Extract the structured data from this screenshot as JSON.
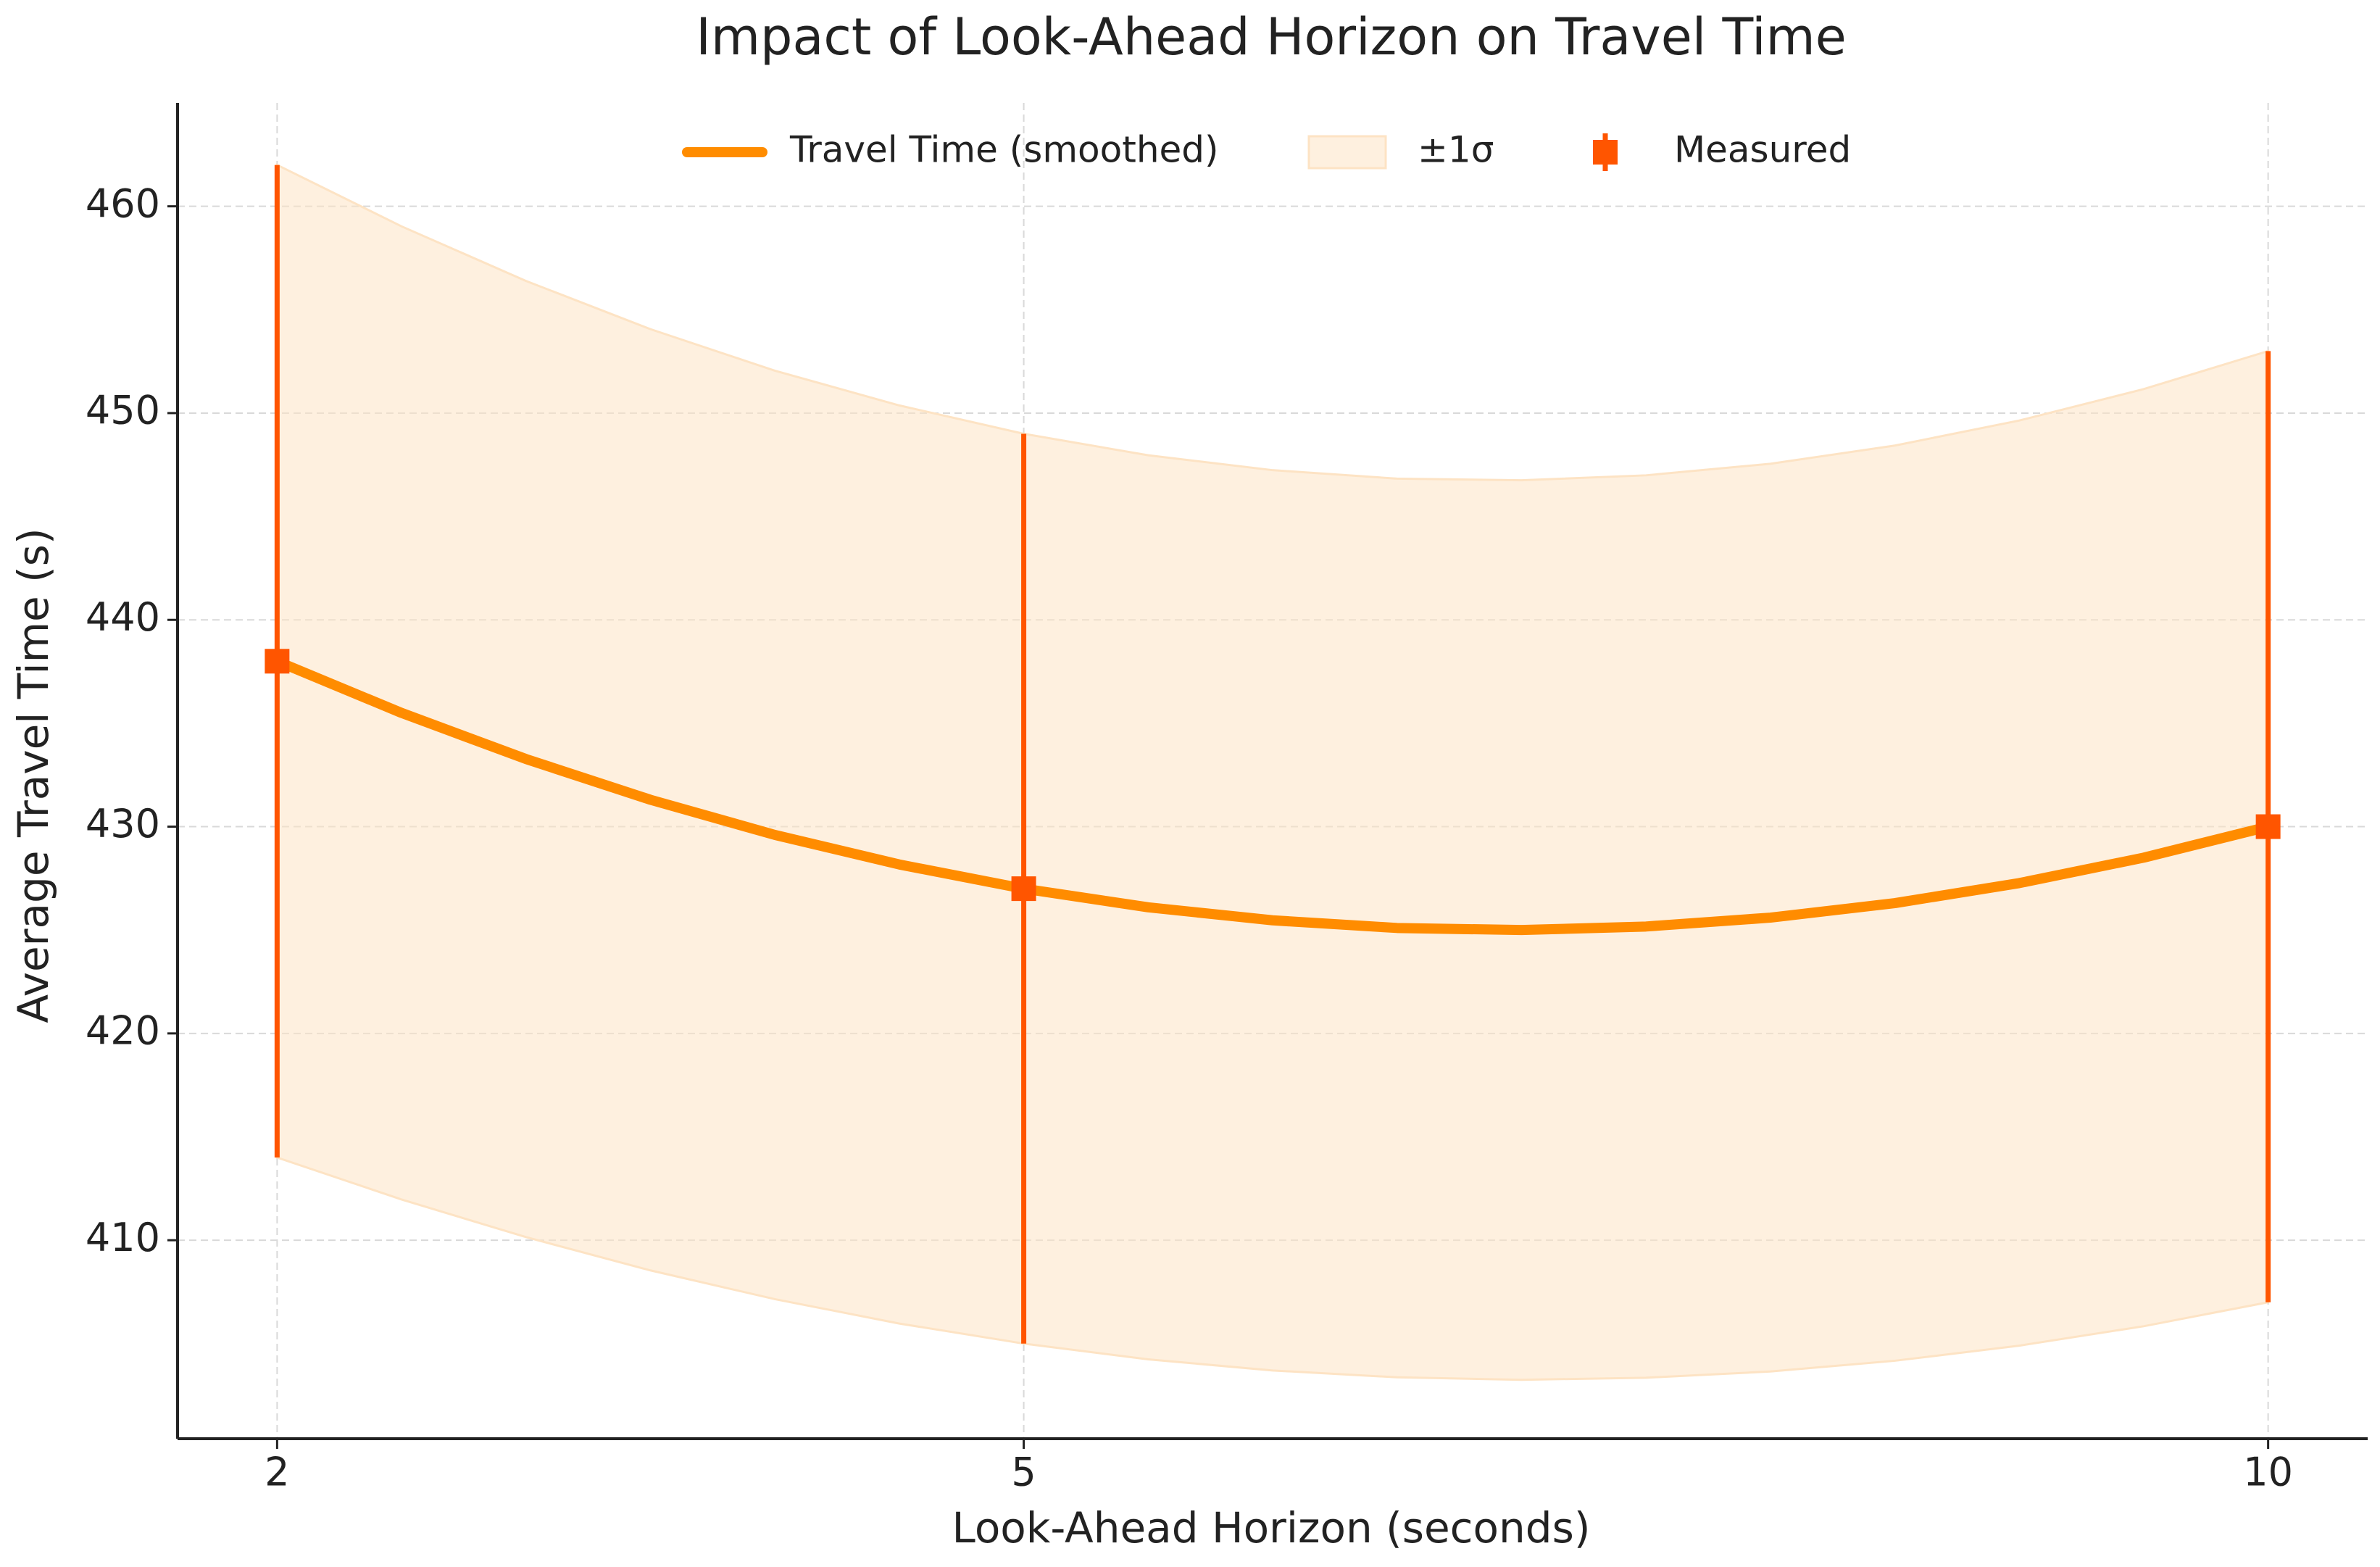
{
  "chart_data": {
    "type": "line",
    "title": "Impact of Look-Ahead Horizon on Travel Time",
    "x_label": "Look-Ahead Horizon (seconds)",
    "y_label": "Average Travel Time (s)",
    "xlim": [
      1.6,
      10.4
    ],
    "ylim": [
      400.4,
      465
    ],
    "xticks": [
      2,
      5,
      10
    ],
    "yticks": [
      410,
      420,
      430,
      440,
      450,
      460
    ],
    "grid": true,
    "legend": "upper center",
    "series": [
      {
        "name": "Travel Time (smoothed)",
        "color": "#ff8c00",
        "x": [
          2,
          2.5,
          3,
          3.5,
          4,
          4.5,
          5,
          5.5,
          6,
          6.5,
          7,
          7.5,
          8,
          8.5,
          9,
          9.5,
          10
        ],
        "values": [
          438.0,
          435.5,
          433.27,
          431.3,
          429.6,
          428.17,
          427.0,
          426.1,
          425.47,
          425.1,
          425.0,
          425.17,
          425.6,
          426.3,
          427.27,
          428.5,
          430.0
        ]
      }
    ],
    "band": {
      "name": "±1σ",
      "color": "#fde3c4",
      "x": [
        2,
        2.5,
        3,
        3.5,
        4,
        4.5,
        5,
        5.5,
        6,
        6.5,
        7,
        7.5,
        8,
        8.5,
        9,
        9.5,
        10
      ],
      "upper": [
        462.0,
        459.03,
        456.39,
        454.06,
        452.05,
        450.37,
        449.0,
        447.96,
        447.24,
        446.83,
        446.75,
        446.99,
        447.55,
        448.43,
        449.64,
        451.16,
        453.0
      ],
      "lower": [
        414.0,
        411.97,
        410.15,
        408.54,
        407.15,
        405.97,
        405.0,
        404.24,
        403.7,
        403.37,
        403.25,
        403.35,
        403.65,
        404.17,
        404.9,
        405.84,
        407.0
      ]
    },
    "points": {
      "name": "Measured",
      "color": "#ff5500",
      "x": [
        2,
        5,
        10
      ],
      "values": [
        438,
        427,
        430
      ],
      "errors": [
        24,
        22,
        23
      ]
    }
  }
}
